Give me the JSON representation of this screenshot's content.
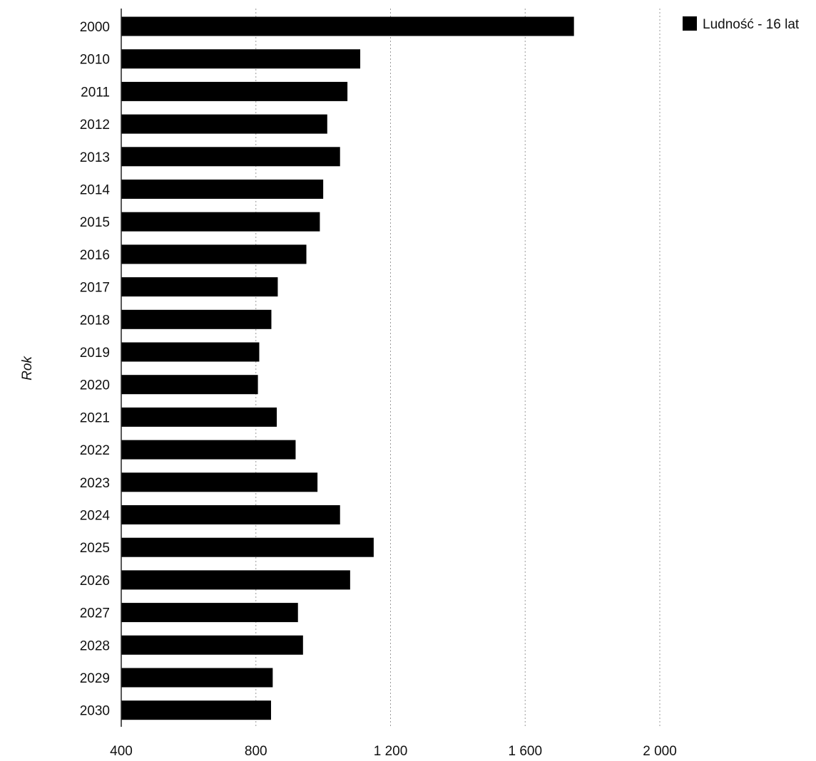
{
  "chart_data": {
    "type": "bar",
    "orientation": "horizontal",
    "title": "",
    "xlabel": "",
    "ylabel": "Rok",
    "categories": [
      "2000",
      "2010",
      "2011",
      "2012",
      "2013",
      "2014",
      "2015",
      "2016",
      "2017",
      "2018",
      "2019",
      "2020",
      "2021",
      "2022",
      "2023",
      "2024",
      "2025",
      "2026",
      "2027",
      "2028",
      "2029",
      "2030"
    ],
    "series": [
      {
        "name": "Ludność - 16 lat",
        "color": "#000000",
        "values": [
          1745,
          1110,
          1072,
          1012,
          1050,
          1000,
          990,
          950,
          865,
          846,
          810,
          806,
          862,
          918,
          983,
          1050,
          1150,
          1080,
          925,
          940,
          850,
          845
        ]
      }
    ],
    "xlim": [
      400,
      2000
    ],
    "xticks": [
      400,
      800,
      1200,
      1600,
      2000
    ],
    "xtick_labels": [
      "400",
      "800",
      "1 200",
      "1 600",
      "2 000"
    ],
    "grid": true,
    "legend_position": "top-right"
  }
}
